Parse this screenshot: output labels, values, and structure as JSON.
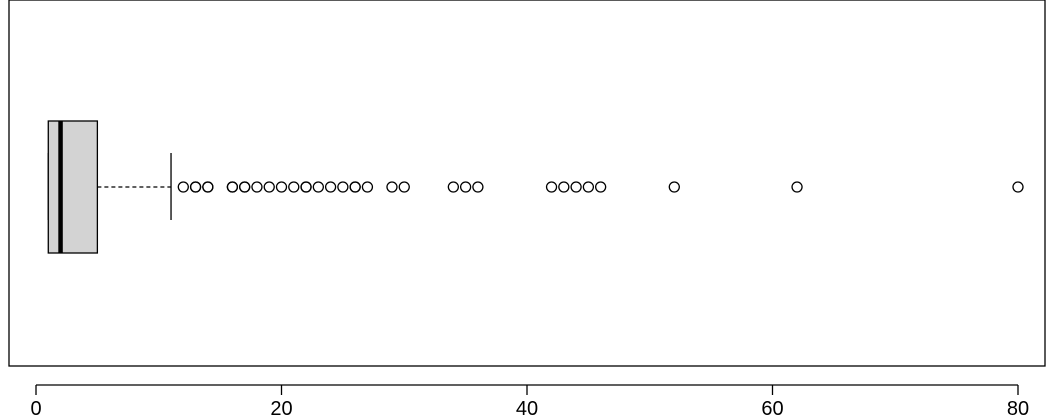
{
  "chart_data": {
    "type": "boxplot",
    "orientation": "horizontal",
    "xlim": [
      -2.2,
      82.2
    ],
    "x_ticks": [
      0,
      20,
      40,
      60,
      80
    ],
    "x_tick_labels": [
      "0",
      "20",
      "40",
      "60",
      "80"
    ],
    "box": {
      "whisker_low": 1,
      "q1": 1,
      "median": 2,
      "q3": 5,
      "whisker_high": 11
    },
    "outliers": [
      12,
      13,
      13,
      14,
      14,
      16,
      16,
      17,
      17,
      18,
      19,
      20,
      21,
      22,
      22,
      23,
      24,
      25,
      26,
      26,
      27,
      29,
      30,
      34,
      35,
      36,
      42,
      43,
      44,
      45,
      46,
      52,
      62,
      80
    ],
    "colors": {
      "box_fill": "#d3d3d3",
      "stroke": "#000000"
    },
    "grid": false
  }
}
